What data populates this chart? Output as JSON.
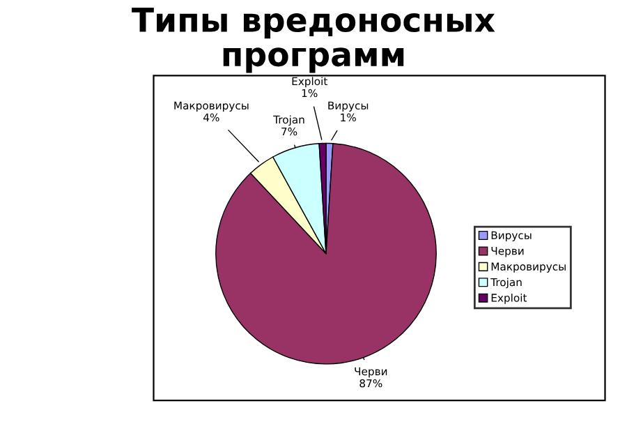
{
  "chart_data": {
    "type": "pie",
    "title": "Типы вредоносных\nпрограмм",
    "categories": [
      "Вирусы",
      "Черви",
      "Макровирусы",
      "Trojan",
      "Exploit"
    ],
    "values": [
      1,
      87,
      4,
      7,
      1
    ],
    "colors": [
      "#9999ff",
      "#993366",
      "#ffffcc",
      "#ccffff",
      "#660066"
    ],
    "value_labels": [
      "1%",
      "87%",
      "4%",
      "7%",
      "1%"
    ],
    "legend": "right"
  }
}
